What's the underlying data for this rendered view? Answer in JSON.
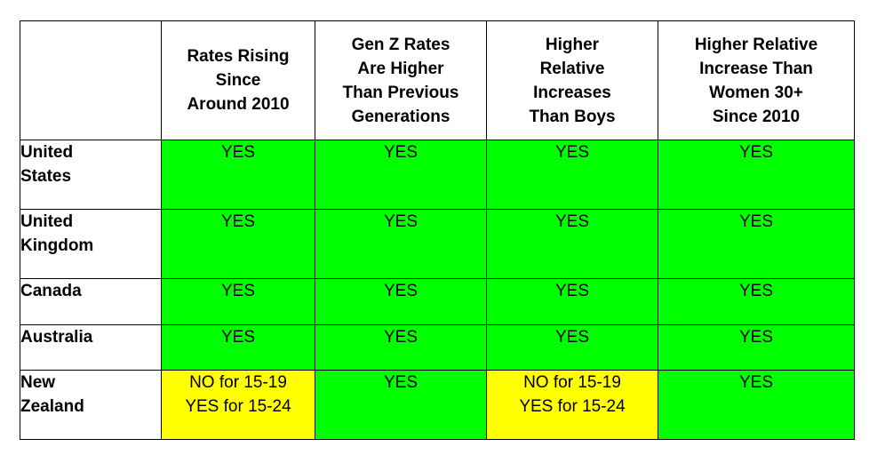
{
  "table": {
    "columns": [
      "",
      "Rates Rising\nSince\nAround 2010",
      "Gen Z Rates\nAre Higher\nThan Previous\nGenerations",
      "Higher\nRelative\nIncreases\nThan Boys",
      "Higher Relative\nIncrease Than\nWomen 30+\nSince 2010"
    ],
    "rows": [
      {
        "label": "United\nStates",
        "cells": [
          "YES",
          "YES",
          "YES",
          "YES"
        ]
      },
      {
        "label": "United\nKingdom",
        "cells": [
          "YES",
          "YES",
          "YES",
          "YES"
        ]
      },
      {
        "label": "Canada",
        "cells": [
          "YES",
          "YES",
          "YES",
          "YES"
        ]
      },
      {
        "label": "Australia",
        "cells": [
          "YES",
          "YES",
          "YES",
          "YES"
        ]
      },
      {
        "label": "New\nZealand",
        "cells": [
          "NO for 15-19\nYES for 15-24",
          "YES",
          "NO for 15-19\nYES for 15-24",
          "YES"
        ]
      }
    ]
  },
  "colors": {
    "yes_fill": "#00ff00",
    "mixed_fill": "#ffff00"
  }
}
